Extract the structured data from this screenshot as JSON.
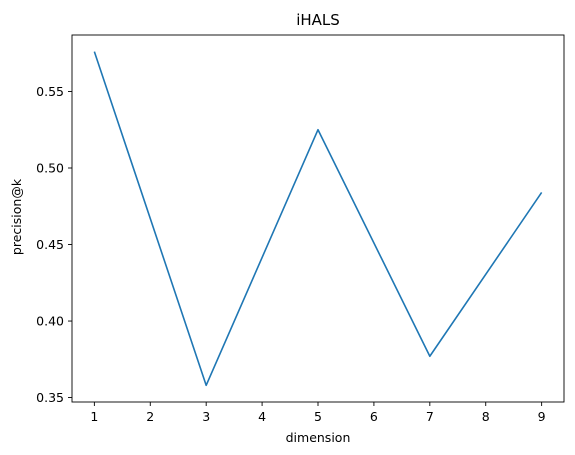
{
  "chart_data": {
    "type": "line",
    "title": "iHALS",
    "xlabel": "dimension",
    "ylabel": "precision@k",
    "x": [
      1,
      3,
      5,
      7,
      9
    ],
    "series": [
      {
        "values": [
          0.576,
          0.358,
          0.525,
          0.377,
          0.484
        ],
        "color": "#1f77b4"
      }
    ],
    "xlim": [
      0.6,
      9.4
    ],
    "ylim": [
      0.3471,
      0.5869
    ],
    "xticks": [
      1,
      2,
      3,
      4,
      5,
      6,
      7,
      8,
      9
    ],
    "yticks": [
      0.35,
      0.4,
      0.45,
      0.5,
      0.55
    ],
    "ytick_labels": [
      "0.35",
      "0.40",
      "0.45",
      "0.50",
      "0.55"
    ],
    "grid": false,
    "legend": "none"
  }
}
